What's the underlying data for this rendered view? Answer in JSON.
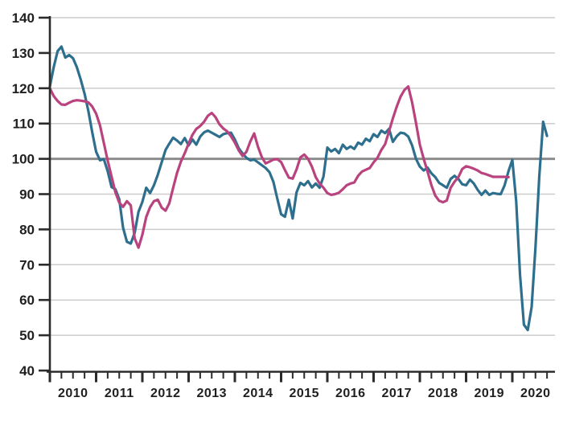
{
  "chart_data": {
    "type": "line",
    "title": "",
    "xlabel": "",
    "ylabel": "",
    "x_axis": {
      "tick_labels": [
        "2010",
        "2011",
        "2012",
        "2013",
        "2014",
        "2015",
        "2016",
        "2017",
        "2018",
        "2019",
        "2020"
      ],
      "major_tick_unit": "year",
      "minor_tick_unit": "quarter",
      "range_start": 2010.0,
      "range_end": 2020.92
    },
    "y_axis": {
      "min": 40,
      "max": 140,
      "tick_step": 10,
      "tick_labels": [
        "40",
        "50",
        "60",
        "70",
        "80",
        "90",
        "100",
        "110",
        "120",
        "130",
        "140"
      ]
    },
    "reference_line": {
      "value": 100,
      "color": "#8c8c8c"
    },
    "layout": {
      "grid": true,
      "legend": "none",
      "background": "#ffffff"
    },
    "series": [
      {
        "name": "teal-index-line",
        "color": "#2e6f8e",
        "start": "2010-01",
        "interval": "month",
        "values": [
          120.5,
          126,
          130.5,
          131.8,
          128.7,
          129.4,
          128.5,
          126,
          122.5,
          118.5,
          113.5,
          107.5,
          102,
          99.6,
          99.9,
          96.5,
          92,
          91.4,
          88.5,
          80.5,
          76.5,
          76,
          79,
          85,
          87.8,
          91.8,
          90.3,
          92.5,
          95.5,
          99,
          102.5,
          104.3,
          106,
          105.2,
          104.2,
          105.9,
          103.8,
          105.5,
          104,
          106.3,
          107.5,
          108,
          107.4,
          106.8,
          106.2,
          107,
          107.3,
          107.4,
          105.5,
          103,
          101.5,
          100.3,
          99.6,
          99.8,
          99,
          98.2,
          97.4,
          96.2,
          93.5,
          88.8,
          84.3,
          83.6,
          88.4,
          83.1,
          90.5,
          93.2,
          92.5,
          93.7,
          91.9,
          93,
          91.8,
          95,
          103.2,
          102.1,
          102.8,
          101.6,
          104,
          102.8,
          103.5,
          102.8,
          104.6,
          104,
          105.7,
          105,
          107,
          106.2,
          108,
          107.3,
          108.5,
          104.8,
          106.4,
          107.4,
          107.2,
          106.3,
          103.8,
          100,
          97.8,
          96.7,
          97.5,
          95.9,
          94.8,
          93.2,
          92.5,
          91.8,
          94.3,
          95.2,
          94.3,
          92.8,
          92.5,
          94.1,
          93,
          91.2,
          89.8,
          91,
          89.8,
          90.3,
          90.1,
          90,
          92.5,
          96.5,
          99.7,
          88,
          67,
          53,
          51.5,
          58,
          75,
          95,
          110.5,
          106.5
        ]
      },
      {
        "name": "pink-index-line",
        "color": "#b9437e",
        "start": "2010-01",
        "interval": "month",
        "values": [
          120,
          117.8,
          116.4,
          115.4,
          115.3,
          115.9,
          116.4,
          116.6,
          116.5,
          116.3,
          116,
          114.8,
          112.8,
          109.5,
          104.5,
          99.5,
          95,
          90.5,
          87.6,
          86.4,
          88,
          86.8,
          77.5,
          74.8,
          78.5,
          83.5,
          86.3,
          88,
          88.4,
          86.2,
          85.3,
          87.4,
          91.8,
          96,
          99.2,
          101.6,
          104.3,
          106.8,
          108.5,
          109.3,
          110.5,
          112.2,
          113,
          111.8,
          109.8,
          108.6,
          107.8,
          106.4,
          104.6,
          102.4,
          100.8,
          102,
          104.9,
          107.2,
          103.4,
          100.5,
          98.7,
          99.2,
          99.8,
          99.9,
          99.1,
          96.8,
          94.7,
          94.4,
          97,
          100.4,
          101.2,
          100,
          97.8,
          94.8,
          93,
          91.8,
          90.3,
          89.8,
          90,
          90.4,
          91.4,
          92.5,
          93,
          93.3,
          95.2,
          96.4,
          96.9,
          97.4,
          99,
          100.3,
          102.5,
          104.2,
          107.8,
          111.5,
          114.8,
          117.6,
          119.5,
          120.5,
          116,
          110.2,
          104,
          100,
          96.4,
          92.5,
          89.6,
          88.1,
          87.7,
          88.2,
          91.8,
          93.5,
          94.8,
          97.1,
          97.9,
          97.6,
          97.2,
          96.7,
          96,
          95.7,
          95.3,
          94.9,
          94.9,
          94.9,
          94.9,
          94.8
        ]
      }
    ],
    "colors": {
      "grid": "#cccccc",
      "grid_emphasis": "#8c8c8c",
      "axis": "#2b2b2b",
      "label": "#1f1f1f",
      "background": "#ffffff"
    }
  }
}
